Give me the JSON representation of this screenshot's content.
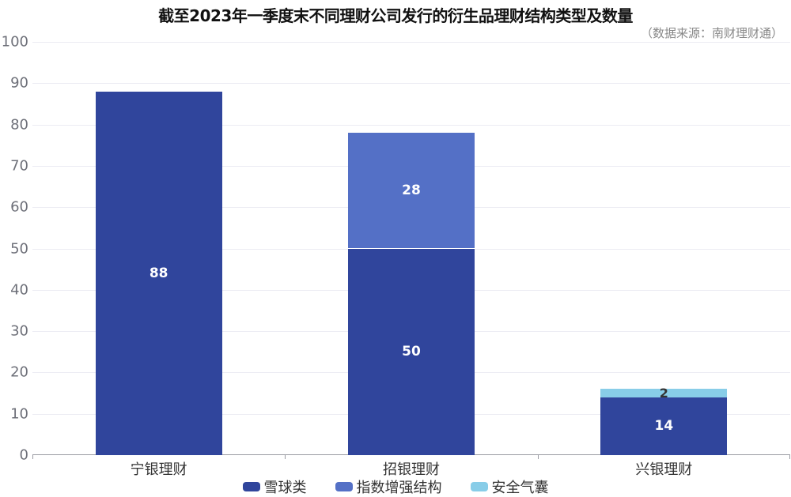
{
  "chart_data": {
    "type": "bar",
    "stacked": true,
    "title": "截至2023年一季度末不同理财公司发行的衍生品理财结构类型及数量",
    "subtitle": "（数据来源：南财理财通）",
    "xlabel": "",
    "ylabel": "",
    "ylim": [
      0,
      100
    ],
    "yticks": [
      0,
      10,
      20,
      30,
      40,
      50,
      60,
      70,
      80,
      90,
      100
    ],
    "grid": true,
    "legend_position": "bottom",
    "categories": [
      "宁银理财",
      "招银理财",
      "兴银理财"
    ],
    "series": [
      {
        "name": "雪球类",
        "color": "#30459c",
        "values": [
          88,
          50,
          14
        ]
      },
      {
        "name": "指数增强结构",
        "color": "#5470c6",
        "values": [
          0,
          28,
          0
        ]
      },
      {
        "name": "安全气囊",
        "color": "#88cde8",
        "values": [
          0,
          0,
          2
        ]
      }
    ]
  },
  "labels": {
    "title": "截至2023年一季度末不同理财公司发行的衍生品理财结构类型及数量",
    "subtitle": "（数据来源：南财理财通）",
    "y_ticks": [
      "0",
      "10",
      "20",
      "30",
      "40",
      "50",
      "60",
      "70",
      "80",
      "90",
      "100"
    ],
    "categories": [
      "宁银理财",
      "招银理财",
      "兴银理财"
    ],
    "legend": [
      "雪球类",
      "指数增强结构",
      "安全气囊"
    ]
  }
}
